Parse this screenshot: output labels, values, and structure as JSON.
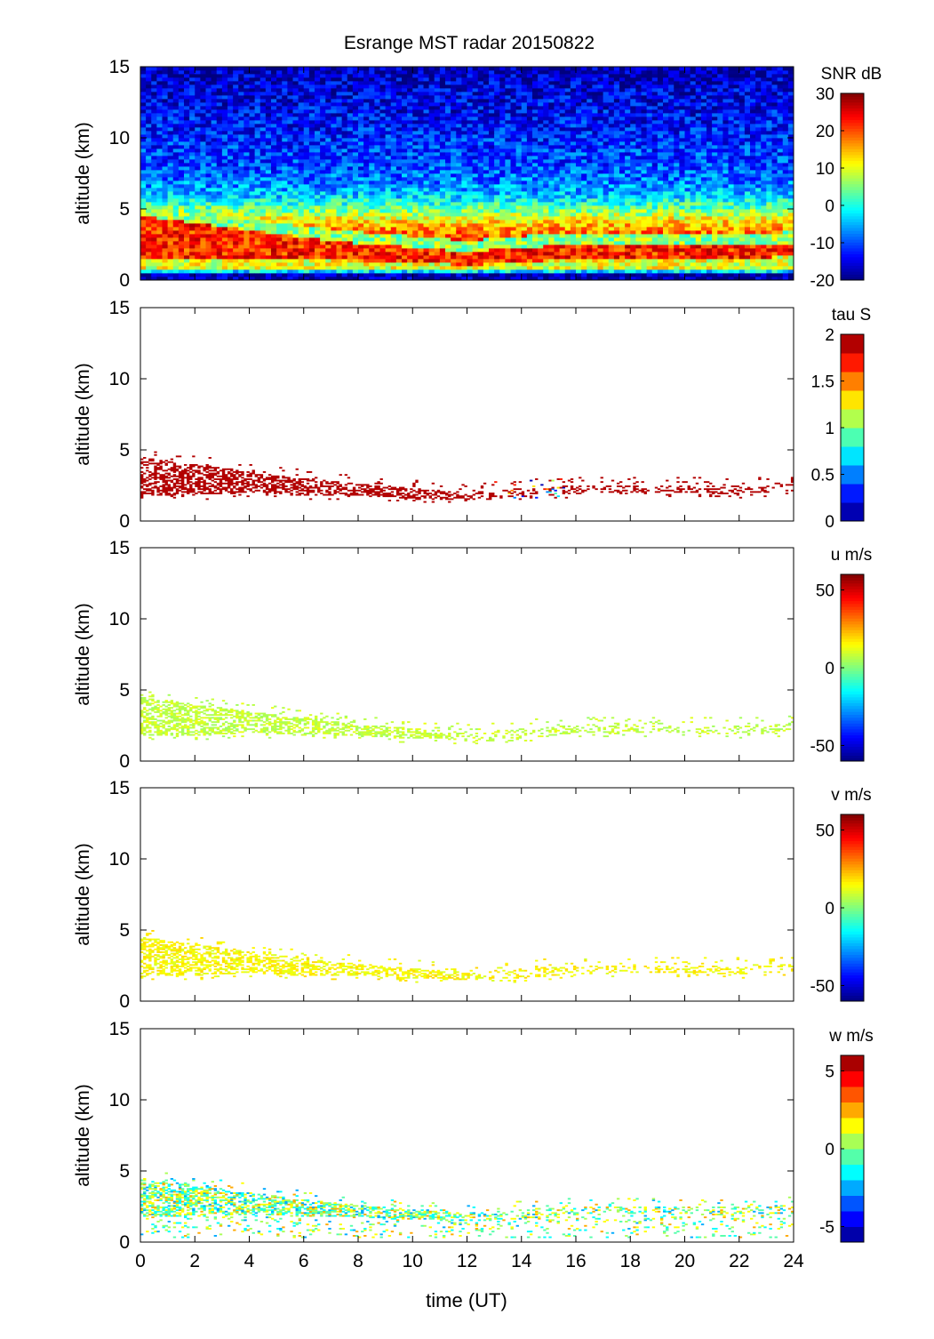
{
  "chart_data": {
    "type": "heatmap",
    "title": "Esrange MST radar 20150822",
    "xlabel": "time (UT)",
    "xlim": [
      0,
      24
    ],
    "xticks": [
      0,
      2,
      4,
      6,
      8,
      10,
      12,
      14,
      16,
      18,
      20,
      22,
      24
    ],
    "ylabel": "altitude (km)",
    "ylim": [
      0,
      15
    ],
    "yticks": [
      0,
      5,
      10,
      15
    ],
    "layer_hours": [
      0,
      2,
      4,
      6,
      8,
      10,
      12,
      14,
      16,
      18,
      20,
      22,
      24
    ],
    "layer_bottom_km": [
      1.8,
      1.8,
      2.0,
      1.8,
      1.8,
      1.6,
      1.5,
      1.6,
      2.0,
      2.0,
      2.0,
      1.9,
      2.1
    ],
    "layer_top_km": [
      4.5,
      4.0,
      3.5,
      3.0,
      2.6,
      2.3,
      2.0,
      2.3,
      2.5,
      2.5,
      2.5,
      2.5,
      2.6
    ],
    "panels": [
      {
        "name": "snr",
        "colorbar_label": "SNR dB",
        "clim": [
          -20,
          30
        ],
        "cticks": [
          "30",
          "20",
          "10",
          "0",
          "-10",
          "-20"
        ],
        "ctick_values": [
          30,
          20,
          10,
          0,
          -10,
          -20
        ],
        "levels": 0,
        "altitude_km": [
          0,
          1,
          2,
          3,
          4,
          5,
          6,
          7,
          8,
          9,
          10,
          11,
          12,
          13,
          14,
          15
        ],
        "profile_db": [
          -20,
          8,
          22,
          20,
          14,
          4,
          -4,
          -8,
          -10,
          -11,
          -12,
          -13,
          -14,
          -15,
          -16,
          -18
        ]
      },
      {
        "name": "tau",
        "colorbar_label": "tau S",
        "clim": [
          0,
          2
        ],
        "cticks": [
          "2",
          "1.5",
          "1",
          "0.5",
          "0"
        ],
        "ctick_values": [
          2,
          1.5,
          1,
          0.5,
          0
        ],
        "levels": 10,
        "typical_value": 2.0
      },
      {
        "name": "u",
        "colorbar_label": "u m/s",
        "clim": [
          -60,
          60
        ],
        "cticks": [
          "50",
          "0",
          "-50"
        ],
        "ctick_values": [
          50,
          0,
          -50
        ],
        "levels": 0,
        "typical_value": 8
      },
      {
        "name": "v",
        "colorbar_label": "v m/s",
        "clim": [
          -60,
          60
        ],
        "cticks": [
          "50",
          "0",
          "-50"
        ],
        "ctick_values": [
          50,
          0,
          -50
        ],
        "levels": 0,
        "typical_value": 15
      },
      {
        "name": "w",
        "colorbar_label": "w m/s",
        "clim": [
          -6,
          6
        ],
        "cticks": [
          "5",
          "0",
          "-5"
        ],
        "ctick_values": [
          5,
          0,
          -5
        ],
        "levels": 12,
        "typical_value": 0
      }
    ]
  }
}
